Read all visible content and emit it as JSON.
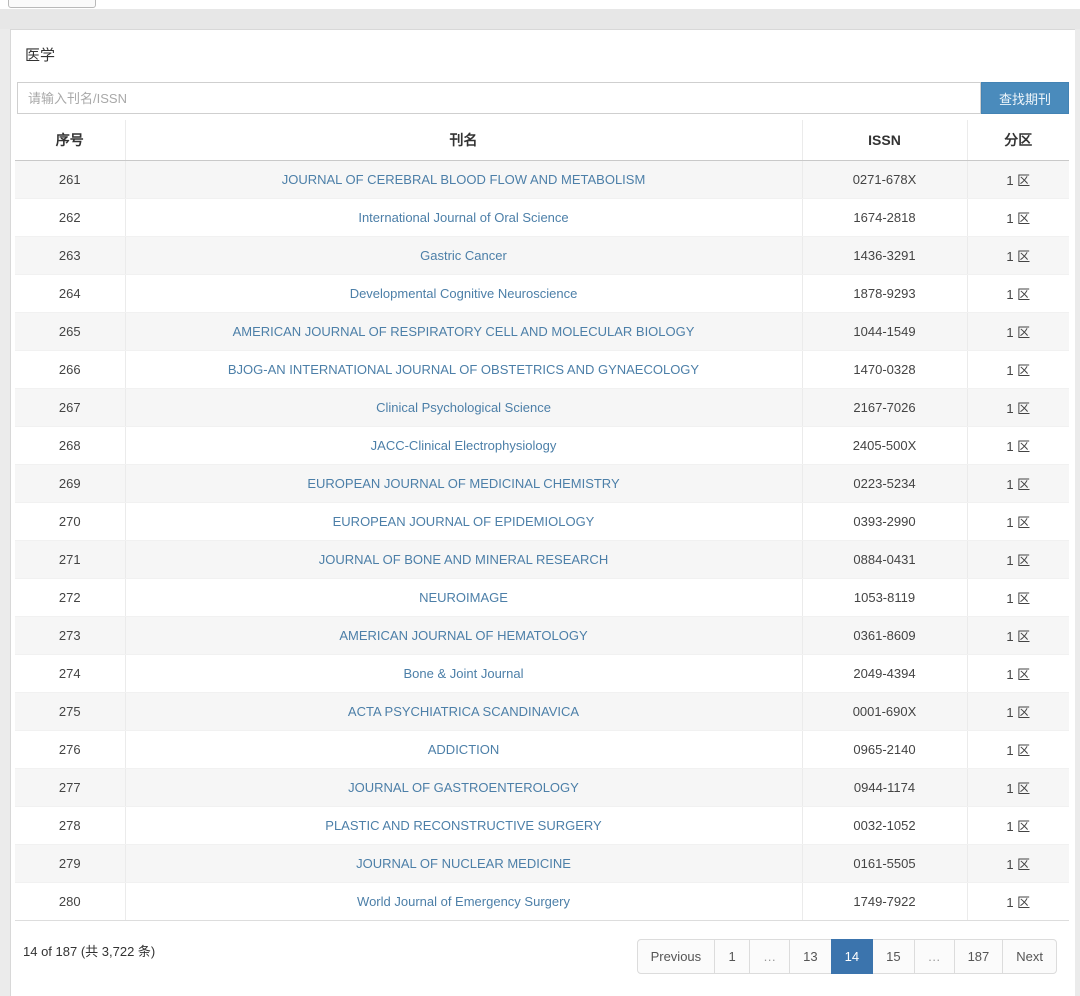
{
  "header": {
    "title": "医学"
  },
  "search": {
    "placeholder": "请输入刊名/ISSN",
    "button_label": "查找期刊"
  },
  "table": {
    "columns": [
      {
        "key": "index",
        "label": "序号"
      },
      {
        "key": "name",
        "label": "刊名"
      },
      {
        "key": "issn",
        "label": "ISSN"
      },
      {
        "key": "zone",
        "label": "分区"
      }
    ],
    "rows": [
      {
        "index": "261",
        "name": "JOURNAL OF CEREBRAL BLOOD FLOW AND METABOLISM",
        "issn": "0271-678X",
        "zone": "1 区"
      },
      {
        "index": "262",
        "name": "International Journal of Oral Science",
        "issn": "1674-2818",
        "zone": "1 区"
      },
      {
        "index": "263",
        "name": "Gastric Cancer",
        "issn": "1436-3291",
        "zone": "1 区"
      },
      {
        "index": "264",
        "name": "Developmental Cognitive Neuroscience",
        "issn": "1878-9293",
        "zone": "1 区"
      },
      {
        "index": "265",
        "name": "AMERICAN JOURNAL OF RESPIRATORY CELL AND MOLECULAR BIOLOGY",
        "issn": "1044-1549",
        "zone": "1 区"
      },
      {
        "index": "266",
        "name": "BJOG-AN INTERNATIONAL JOURNAL OF OBSTETRICS AND GYNAECOLOGY",
        "issn": "1470-0328",
        "zone": "1 区"
      },
      {
        "index": "267",
        "name": "Clinical Psychological Science",
        "issn": "2167-7026",
        "zone": "1 区"
      },
      {
        "index": "268",
        "name": "JACC-Clinical Electrophysiology",
        "issn": "2405-500X",
        "zone": "1 区"
      },
      {
        "index": "269",
        "name": "EUROPEAN JOURNAL OF MEDICINAL CHEMISTRY",
        "issn": "0223-5234",
        "zone": "1 区"
      },
      {
        "index": "270",
        "name": "EUROPEAN JOURNAL OF EPIDEMIOLOGY",
        "issn": "0393-2990",
        "zone": "1 区"
      },
      {
        "index": "271",
        "name": "JOURNAL OF BONE AND MINERAL RESEARCH",
        "issn": "0884-0431",
        "zone": "1 区"
      },
      {
        "index": "272",
        "name": "NEUROIMAGE",
        "issn": "1053-8119",
        "zone": "1 区"
      },
      {
        "index": "273",
        "name": "AMERICAN JOURNAL OF HEMATOLOGY",
        "issn": "0361-8609",
        "zone": "1 区"
      },
      {
        "index": "274",
        "name": "Bone & Joint Journal",
        "issn": "2049-4394",
        "zone": "1 区"
      },
      {
        "index": "275",
        "name": "ACTA PSYCHIATRICA SCANDINAVICA",
        "issn": "0001-690X",
        "zone": "1 区"
      },
      {
        "index": "276",
        "name": "ADDICTION",
        "issn": "0965-2140",
        "zone": "1 区"
      },
      {
        "index": "277",
        "name": "JOURNAL OF GASTROENTEROLOGY",
        "issn": "0944-1174",
        "zone": "1 区"
      },
      {
        "index": "278",
        "name": "PLASTIC AND RECONSTRUCTIVE SURGERY",
        "issn": "0032-1052",
        "zone": "1 区"
      },
      {
        "index": "279",
        "name": "JOURNAL OF NUCLEAR MEDICINE",
        "issn": "0161-5505",
        "zone": "1 区"
      },
      {
        "index": "280",
        "name": "World Journal of Emergency Surgery",
        "issn": "1749-7922",
        "zone": "1 区"
      }
    ]
  },
  "footer": {
    "summary": "14 of 187 (共 3,722 条)"
  },
  "pagination": {
    "items": [
      {
        "label": "Previous",
        "kind": "nav"
      },
      {
        "label": "1",
        "kind": "page"
      },
      {
        "label": "…",
        "kind": "ellipsis"
      },
      {
        "label": "13",
        "kind": "page"
      },
      {
        "label": "14",
        "kind": "page",
        "active": true
      },
      {
        "label": "15",
        "kind": "page"
      },
      {
        "label": "…",
        "kind": "ellipsis"
      },
      {
        "label": "187",
        "kind": "page"
      },
      {
        "label": "Next",
        "kind": "nav"
      }
    ]
  },
  "colors": {
    "accent_button": "#4a8bbc",
    "active_page": "#3b74ad",
    "journal_link": "#4c7fa8",
    "band": "#e7e7e7"
  }
}
